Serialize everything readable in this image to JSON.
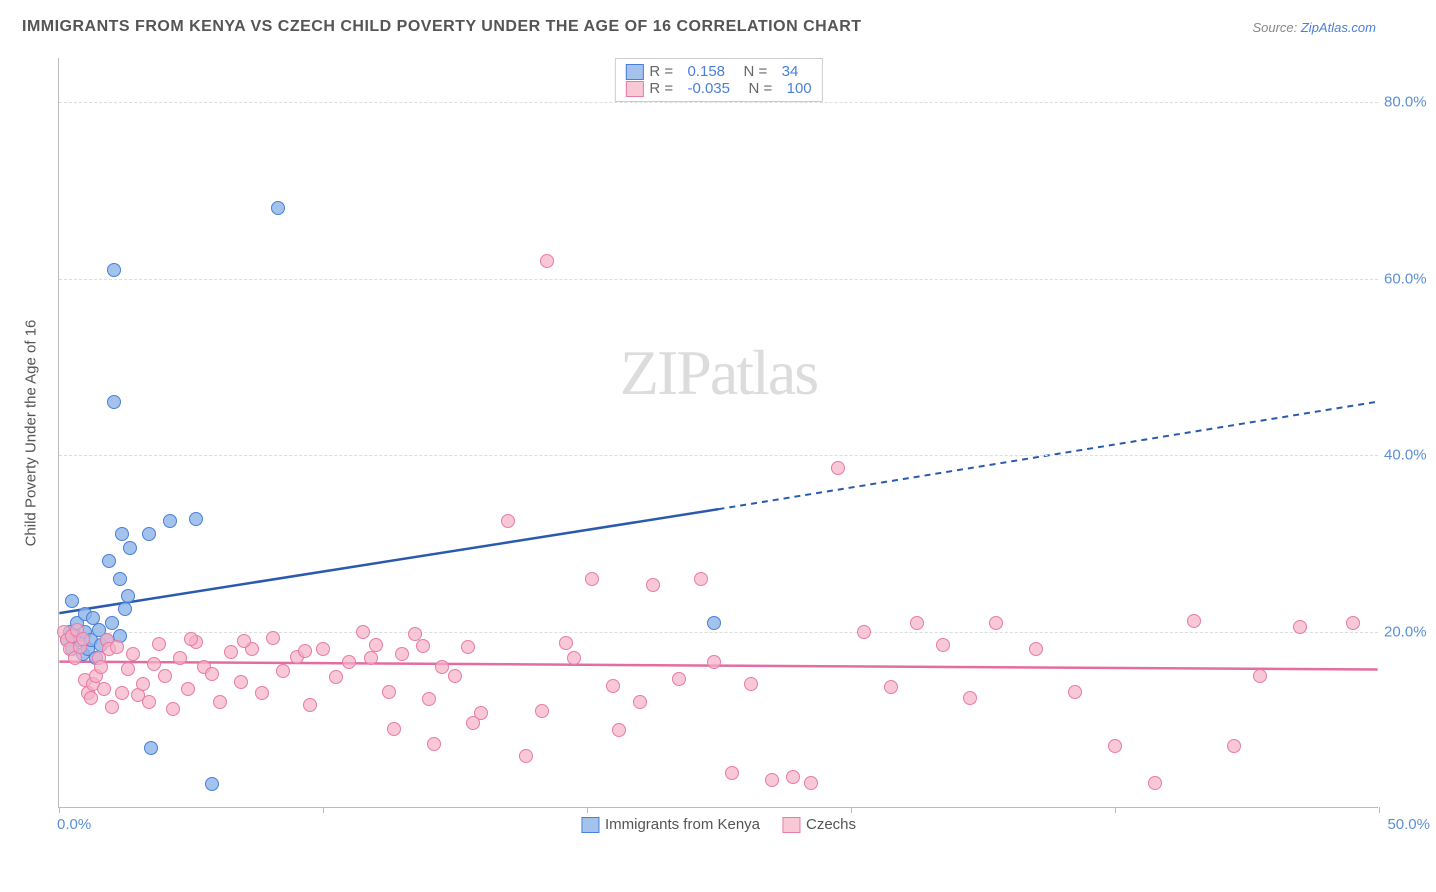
{
  "title": "IMMIGRANTS FROM KENYA VS CZECH CHILD POVERTY UNDER THE AGE OF 16 CORRELATION CHART",
  "source_prefix": "Source: ",
  "source_name": "ZipAtlas.com",
  "y_axis_title": "Child Poverty Under the Age of 16",
  "watermark": "ZIPatlas",
  "chart": {
    "type": "scatter",
    "xlim": [
      0,
      50
    ],
    "ylim": [
      0,
      85
    ],
    "x_ticks": [
      0,
      10,
      20,
      30,
      40,
      50
    ],
    "x_tick_labels": {
      "0": "0.0%",
      "50": "50.0%"
    },
    "y_ticks": [
      20,
      40,
      60,
      80
    ],
    "y_tick_labels": [
      "20.0%",
      "40.0%",
      "60.0%",
      "80.0%"
    ],
    "background_color": "#ffffff",
    "grid_color": "#dddddd",
    "axis_label_color": "#5b8fd9",
    "marker_radius": 7,
    "series": [
      {
        "name": "Immigrants from Kenya",
        "fill": "#8cb4e8cc",
        "stroke": "#4a7fd9",
        "trend_color": "#2a5aad",
        "r_label": "R =",
        "r_value": "0.158",
        "n_label": "N =",
        "n_value": "34",
        "trend": {
          "x1": 0,
          "y1": 22,
          "x2_solid": 25,
          "y2_solid": 33.8,
          "x2_dash": 50,
          "y2_dash": 46
        },
        "points": [
          [
            0.3,
            19
          ],
          [
            0.4,
            20
          ],
          [
            0.5,
            18
          ],
          [
            0.6,
            19.5
          ],
          [
            0.7,
            21
          ],
          [
            0.8,
            19
          ],
          [
            0.9,
            17.5
          ],
          [
            1.0,
            20
          ],
          [
            1.0,
            22
          ],
          [
            1.1,
            18
          ],
          [
            1.2,
            19
          ],
          [
            1.3,
            21.5
          ],
          [
            1.4,
            17
          ],
          [
            1.5,
            20.2
          ],
          [
            1.6,
            18.5
          ],
          [
            1.8,
            19
          ],
          [
            2.0,
            21
          ],
          [
            2.3,
            19.5
          ],
          [
            2.5,
            22.5
          ],
          [
            2.4,
            31
          ],
          [
            2.3,
            26
          ],
          [
            2.6,
            24
          ],
          [
            1.9,
            28
          ],
          [
            2.7,
            29.5
          ],
          [
            3.4,
            31
          ],
          [
            4.2,
            32.5
          ],
          [
            5.2,
            32.7
          ],
          [
            2.1,
            46
          ],
          [
            2.1,
            61
          ],
          [
            8.3,
            68
          ],
          [
            3.5,
            6.8
          ],
          [
            5.8,
            2.7
          ],
          [
            0.5,
            23.5
          ],
          [
            24.8,
            21
          ]
        ]
      },
      {
        "name": "Czechs",
        "fill": "#f5b0c6b3",
        "stroke": "#e87ba4",
        "trend_color": "#e36da0",
        "r_label": "R =",
        "r_value": "-0.035",
        "n_label": "N =",
        "n_value": "100",
        "trend": {
          "x1": 0,
          "y1": 16.5,
          "x2_solid": 50,
          "y2_solid": 15.6,
          "x2_dash": 50,
          "y2_dash": 15.6
        },
        "points": [
          [
            0.2,
            20
          ],
          [
            0.3,
            19
          ],
          [
            0.4,
            18
          ],
          [
            0.5,
            19.5
          ],
          [
            0.6,
            17
          ],
          [
            0.7,
            20.2
          ],
          [
            0.8,
            18.3
          ],
          [
            0.9,
            19.1
          ],
          [
            1.0,
            14.5
          ],
          [
            1.1,
            13
          ],
          [
            1.2,
            12.5
          ],
          [
            1.3,
            14
          ],
          [
            1.4,
            15
          ],
          [
            1.5,
            17
          ],
          [
            1.6,
            16
          ],
          [
            1.7,
            13.5
          ],
          [
            1.8,
            19
          ],
          [
            1.9,
            18
          ],
          [
            2.0,
            11.5
          ],
          [
            2.2,
            18.3
          ],
          [
            2.4,
            13
          ],
          [
            2.6,
            15.8
          ],
          [
            2.8,
            17.5
          ],
          [
            3.0,
            12.8
          ],
          [
            3.2,
            14
          ],
          [
            3.4,
            12
          ],
          [
            3.6,
            16.3
          ],
          [
            3.8,
            18.6
          ],
          [
            4.0,
            15
          ],
          [
            4.3,
            11.2
          ],
          [
            4.6,
            17
          ],
          [
            4.9,
            13.5
          ],
          [
            5.2,
            18.8
          ],
          [
            5.5,
            16
          ],
          [
            5.8,
            15.2
          ],
          [
            6.1,
            12
          ],
          [
            6.5,
            17.7
          ],
          [
            6.9,
            14.3
          ],
          [
            7.3,
            18
          ],
          [
            7.7,
            13
          ],
          [
            8.1,
            19.3
          ],
          [
            8.5,
            15.5
          ],
          [
            9.0,
            17.1
          ],
          [
            9.5,
            11.7
          ],
          [
            10.0,
            18
          ],
          [
            10.5,
            14.8
          ],
          [
            11.0,
            16.5
          ],
          [
            11.5,
            20
          ],
          [
            12.0,
            18.5
          ],
          [
            12.5,
            13.2
          ],
          [
            13.0,
            17.4
          ],
          [
            13.5,
            19.7
          ],
          [
            14.0,
            12.3
          ],
          [
            14.5,
            16
          ],
          [
            15.0,
            15
          ],
          [
            15.5,
            18.2
          ],
          [
            16.0,
            10.8
          ],
          [
            5.0,
            19.2
          ],
          [
            7.0,
            18.9
          ],
          [
            9.3,
            17.8
          ],
          [
            11.8,
            17
          ],
          [
            13.8,
            18.4
          ],
          [
            17,
            32.5
          ],
          [
            18.5,
            62
          ],
          [
            19.5,
            17
          ],
          [
            20.2,
            26
          ],
          [
            21,
            13.8
          ],
          [
            22,
            12
          ],
          [
            22.5,
            25.3
          ],
          [
            23.5,
            14.6
          ],
          [
            24.3,
            26
          ],
          [
            24.8,
            16.5
          ],
          [
            25.5,
            4
          ],
          [
            26.2,
            14
          ],
          [
            27,
            3.2
          ],
          [
            27.8,
            3.5
          ],
          [
            28.5,
            2.8
          ],
          [
            29.5,
            38.5
          ],
          [
            30.5,
            20
          ],
          [
            31.5,
            13.7
          ],
          [
            32.5,
            21
          ],
          [
            33.5,
            18.5
          ],
          [
            34.5,
            12.5
          ],
          [
            35.5,
            21
          ],
          [
            37,
            18
          ],
          [
            38.5,
            13.2
          ],
          [
            40,
            7
          ],
          [
            41.5,
            2.8
          ],
          [
            43,
            21.2
          ],
          [
            44.5,
            7
          ],
          [
            45.5,
            15
          ],
          [
            47,
            20.5
          ],
          [
            49,
            21
          ],
          [
            14.2,
            7.2
          ],
          [
            15.7,
            9.6
          ],
          [
            18.3,
            11
          ],
          [
            21.2,
            8.8
          ],
          [
            17.7,
            5.9
          ],
          [
            19.2,
            18.7
          ],
          [
            12.7,
            9
          ]
        ]
      }
    ]
  }
}
